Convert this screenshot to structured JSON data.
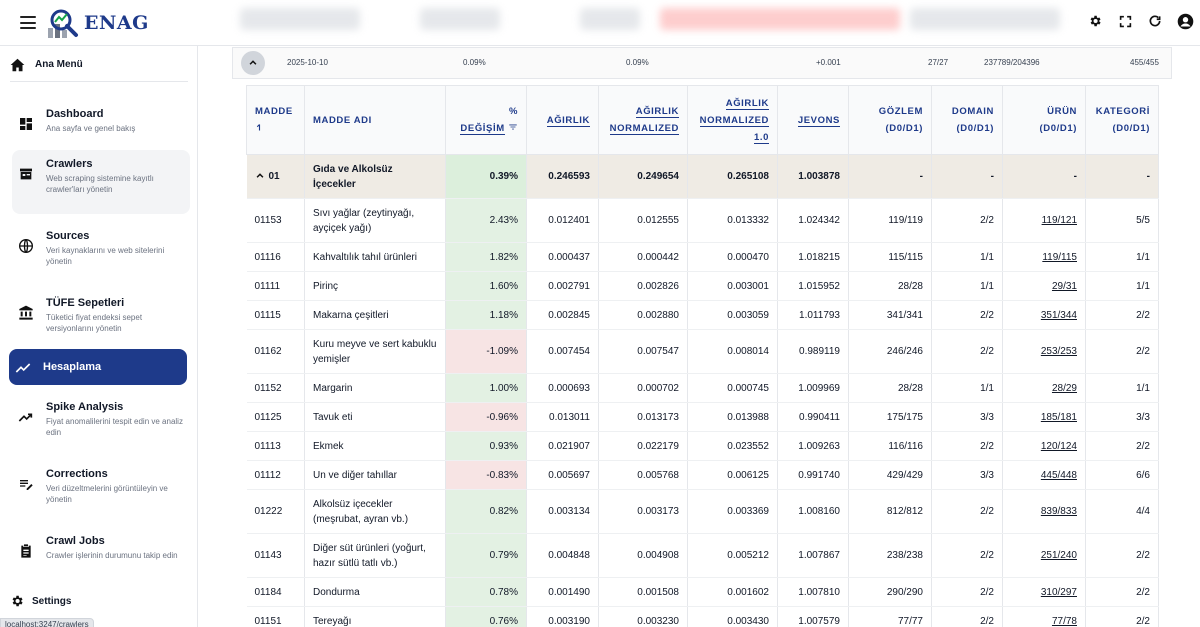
{
  "app": {
    "logo_text": "ENAG"
  },
  "sidebar": {
    "home_label": "Ana Menü",
    "items": [
      {
        "title": "Dashboard",
        "subtitle": "Ana sayfa ve genel bakış",
        "icon": "dashboard-icon"
      },
      {
        "title": "Crawlers",
        "subtitle": "Web scraping sistemine kayıtlı crawler'ları yönetin",
        "icon": "crawler-icon"
      },
      {
        "title": "Sources",
        "subtitle": "Veri kaynaklarını ve web sitelerini yönetin",
        "icon": "globe-icon"
      },
      {
        "title": "TÜFE Sepetleri",
        "subtitle": "Tüketici fiyat endeksi sepet versiyonlarını yönetin",
        "icon": "bank-icon"
      },
      {
        "title": "Hesaplama",
        "subtitle": "",
        "icon": "trending-icon"
      },
      {
        "title": "Spike Analysis",
        "subtitle": "Fiyat anomalilerini tespit edin ve analiz edin",
        "icon": "spike-icon"
      },
      {
        "title": "Corrections",
        "subtitle": "Veri düzeltmelerini görüntüleyin ve yönetin",
        "icon": "edit-list-icon"
      },
      {
        "title": "Crawl Jobs",
        "subtitle": "Crawler işlerinin durumunu takip edin",
        "icon": "clipboard-icon"
      }
    ],
    "settings_label": "Settings"
  },
  "status_url": "localhost:3247/crawlers",
  "summary": {
    "date": "2025-10-10",
    "pct1": "0.09%",
    "pct2": "0.09%",
    "delta": "+0.001",
    "ratio1": "27/27",
    "ratio2": "237789/204396",
    "ratio3": "455/455"
  },
  "table": {
    "headers": {
      "madde": "MADDE",
      "madde_adi": "MADDE ADI",
      "pct_line1": "%",
      "pct_line2": "DEĞİŞİM",
      "agirlik": "AĞIRLIK",
      "agirlik_norm_1": "AĞIRLIK",
      "agirlik_norm_2": "NORMALIZED",
      "agirlik_norm10_1": "AĞIRLIK",
      "agirlik_norm10_2": "NORMALIZED",
      "agirlik_norm10_3": "1.0",
      "jevons": "JEVONS",
      "gozlem_1": "GÖZLEM",
      "gozlem_2": "(D0/D1)",
      "domain_1": "DOMAIN",
      "domain_2": "(D0/D1)",
      "urun_1": "ÜRÜN",
      "urun_2": "(D0/D1)",
      "kategori_1": "KATEGORİ",
      "kategori_2": "(D0/D1)"
    },
    "group": {
      "code": "01",
      "name": "Gıda ve Alkolsüz İçecekler",
      "pct": "0.39%",
      "agirlik": "0.246593",
      "norm": "0.249654",
      "norm10": "0.265108",
      "jevons": "1.003878",
      "gozlem": "-",
      "domain": "-",
      "urun": "-",
      "kategori": "-"
    },
    "rows": [
      {
        "code": "01153",
        "name": "Sıvı yağlar (zeytinyağı, ayçiçek yağı)",
        "pct": "2.43%",
        "agirlik": "0.012401",
        "norm": "0.012555",
        "norm10": "0.013332",
        "jevons": "1.024342",
        "gozlem": "119/119",
        "domain": "2/2",
        "urun": "119/121",
        "kategori": "5/5"
      },
      {
        "code": "01116",
        "name": "Kahvaltılık tahıl ürünleri",
        "pct": "1.82%",
        "agirlik": "0.000437",
        "norm": "0.000442",
        "norm10": "0.000470",
        "jevons": "1.018215",
        "gozlem": "115/115",
        "domain": "1/1",
        "urun": "119/115",
        "kategori": "1/1"
      },
      {
        "code": "01111",
        "name": "Pirinç",
        "pct": "1.60%",
        "agirlik": "0.002791",
        "norm": "0.002826",
        "norm10": "0.003001",
        "jevons": "1.015952",
        "gozlem": "28/28",
        "domain": "1/1",
        "urun": "29/31",
        "kategori": "1/1"
      },
      {
        "code": "01115",
        "name": "Makarna çeşitleri",
        "pct": "1.18%",
        "agirlik": "0.002845",
        "norm": "0.002880",
        "norm10": "0.003059",
        "jevons": "1.011793",
        "gozlem": "341/341",
        "domain": "2/2",
        "urun": "351/344",
        "kategori": "2/2"
      },
      {
        "code": "01162",
        "name": "Kuru meyve ve sert kabuklu yemişler",
        "pct": "-1.09%",
        "agirlik": "0.007454",
        "norm": "0.007547",
        "norm10": "0.008014",
        "jevons": "0.989119",
        "gozlem": "246/246",
        "domain": "2/2",
        "urun": "253/253",
        "kategori": "2/2"
      },
      {
        "code": "01152",
        "name": "Margarin",
        "pct": "1.00%",
        "agirlik": "0.000693",
        "norm": "0.000702",
        "norm10": "0.000745",
        "jevons": "1.009969",
        "gozlem": "28/28",
        "domain": "1/1",
        "urun": "28/29",
        "kategori": "1/1"
      },
      {
        "code": "01125",
        "name": "Tavuk eti",
        "pct": "-0.96%",
        "agirlik": "0.013011",
        "norm": "0.013173",
        "norm10": "0.013988",
        "jevons": "0.990411",
        "gozlem": "175/175",
        "domain": "3/3",
        "urun": "185/181",
        "kategori": "3/3"
      },
      {
        "code": "01113",
        "name": "Ekmek",
        "pct": "0.93%",
        "agirlik": "0.021907",
        "norm": "0.022179",
        "norm10": "0.023552",
        "jevons": "1.009263",
        "gozlem": "116/116",
        "domain": "2/2",
        "urun": "120/124",
        "kategori": "2/2"
      },
      {
        "code": "01112",
        "name": "Un ve diğer tahıllar",
        "pct": "-0.83%",
        "agirlik": "0.005697",
        "norm": "0.005768",
        "norm10": "0.006125",
        "jevons": "0.991740",
        "gozlem": "429/429",
        "domain": "3/3",
        "urun": "445/448",
        "kategori": "6/6"
      },
      {
        "code": "01222",
        "name": "Alkolsüz içecekler (meşrubat, ayran vb.)",
        "pct": "0.82%",
        "agirlik": "0.003134",
        "norm": "0.003173",
        "norm10": "0.003369",
        "jevons": "1.008160",
        "gozlem": "812/812",
        "domain": "2/2",
        "urun": "839/833",
        "kategori": "4/4"
      },
      {
        "code": "01143",
        "name": "Diğer süt ürünleri (yoğurt, hazır sütlü tatlı vb.)",
        "pct": "0.79%",
        "agirlik": "0.004848",
        "norm": "0.004908",
        "norm10": "0.005212",
        "jevons": "1.007867",
        "gozlem": "238/238",
        "domain": "2/2",
        "urun": "251/240",
        "kategori": "2/2"
      },
      {
        "code": "01184",
        "name": "Dondurma",
        "pct": "0.78%",
        "agirlik": "0.001490",
        "norm": "0.001508",
        "norm10": "0.001602",
        "jevons": "1.007810",
        "gozlem": "290/290",
        "domain": "2/2",
        "urun": "310/297",
        "kategori": "2/2"
      },
      {
        "code": "01151",
        "name": "Tereyağı",
        "pct": "0.76%",
        "agirlik": "0.003190",
        "norm": "0.003230",
        "norm10": "0.003430",
        "jevons": "1.007579",
        "gozlem": "77/77",
        "domain": "2/2",
        "urun": "77/78",
        "kategori": "2/2"
      }
    ]
  },
  "colors": {
    "brand": "#1e3a8a",
    "positive_bg": "#e3f1e3",
    "negative_bg": "#f7e4e4",
    "group_bg": "#efebe4"
  }
}
